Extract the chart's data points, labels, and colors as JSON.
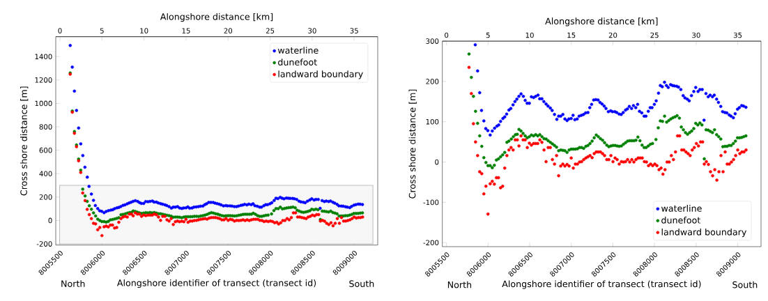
{
  "chart_data": [
    {
      "type": "scatter",
      "marker": "circle",
      "legend": "top right",
      "xlabel": "Alongshore identifier of transect (transect id)",
      "ylabel": "Cross shore distance [m]",
      "x2label": "Alongshore distance [km]",
      "annotations": [
        "North",
        "South"
      ],
      "xlim": [
        8005450,
        8009280
      ],
      "xticks": [
        8005500,
        8006000,
        8006500,
        8007000,
        8007500,
        8008000,
        8008500,
        8009000
      ],
      "ylim": [
        -210,
        1570
      ],
      "yticks": [
        -200,
        0,
        200,
        400,
        600,
        800,
        1000,
        1200,
        1400
      ],
      "x2lim": [
        -0.5,
        37.8
      ],
      "x2ticks": [
        0,
        5,
        10,
        15,
        20,
        25,
        30,
        35
      ],
      "bands": [
        {
          "axis": "y",
          "from": -200,
          "to": 300,
          "color": "#bfbfbf"
        }
      ],
      "series": [
        {
          "name": "waterline",
          "color": "#0000ff",
          "x": [
            8005622,
            8005647,
            8005672,
            8005697,
            8005722,
            8005747,
            8005772,
            8005797,
            8005825,
            8005846,
            8005874,
            8005899,
            8005921,
            8005949,
            8005972,
            8005997,
            8006025,
            8006050,
            8006078,
            8006106,
            8006128,
            8006150,
            8006178,
            8006200,
            8006223,
            8006250,
            8006273,
            8006300,
            8006323,
            8006346,
            8006370,
            8006396,
            8006424,
            8006446,
            8006469,
            8006496,
            8006520,
            8006547,
            8006572,
            8006600,
            8006620,
            8006647,
            8006670,
            8006697,
            8006720,
            8006748,
            8006770,
            8006798,
            8006826,
            8006848,
            8006873,
            8006899,
            8006923,
            8006949,
            8006971,
            8006999,
            8007021,
            8007043,
            8007071,
            8007094,
            8007121,
            8007147,
            8007172,
            8007200,
            8007222,
            8007244,
            8007269,
            8007295,
            8007322,
            8007345,
            8007370,
            8007395,
            8007417,
            8007445,
            8007473,
            8007495,
            8007523,
            8007546,
            8007574,
            8007600,
            8007624,
            8007652,
            8007674,
            8007697,
            8007724,
            8007747,
            8007775,
            8007797,
            8007819,
            8007847,
            8007875,
            8007897,
            8007925,
            8007948,
            8007970,
            8007998,
            8008020,
            8008048,
            8008070,
            8008093,
            8008120,
            8008143,
            8008165,
            8008193,
            8008216,
            8008238,
            8008266,
            8008288,
            8008316,
            8008344,
            8008366,
            8008394,
            8008417,
            8008444,
            8008472,
            8008495,
            8008523,
            8008545,
            8008573,
            8008595,
            8008618,
            8008645,
            8008668,
            8008696,
            8008718,
            8008746,
            8008768,
            8008796,
            8008818,
            8008846,
            8008869,
            8008897,
            8008919,
            8008947,
            8008969,
            8008997,
            8009019,
            8009047,
            8009070,
            8009098
          ],
          "values": [
            1495,
            1310,
            1105,
            940,
            790,
            655,
            555,
            455,
            370,
            291,
            226,
            172,
            128,
            102,
            83,
            78,
            67,
            77,
            84,
            89,
            92,
            101,
            108,
            112,
            119,
            129,
            133,
            142,
            150,
            156,
            163,
            169,
            163,
            153,
            146,
            146,
            162,
            160,
            163,
            166,
            157,
            157,
            150,
            144,
            139,
            134,
            128,
            118,
            106,
            114,
            114,
            118,
            107,
            103,
            107,
            108,
            116,
            105,
            107,
            114,
            116,
            118,
            122,
            123,
            135,
            143,
            154,
            155,
            154,
            148,
            144,
            139,
            133,
            125,
            127,
            125,
            125,
            123,
            119,
            118,
            123,
            129,
            132,
            138,
            133,
            140,
            135,
            143,
            126,
            122,
            114,
            114,
            126,
            135,
            135,
            143,
            152,
            171,
            190,
            187,
            198,
            190,
            185,
            192,
            190,
            189,
            188,
            186,
            180,
            165,
            159,
            156,
            152,
            165,
            175,
            185,
            175,
            180,
            180,
            104,
            170,
            162,
            166,
            162,
            166,
            156,
            148,
            138,
            125,
            123,
            122,
            117,
            114,
            110,
            120,
            131,
            135,
            140,
            139,
            136
          ]
        },
        {
          "name": "dunefoot",
          "color": "#008000",
          "x": [
            8005622,
            8005647,
            8005672,
            8005697,
            8005722,
            8005747,
            8005771,
            8005799,
            8005824,
            8005849,
            8005874,
            8005899,
            8005924,
            8005949,
            8005974,
            8005999,
            8006025,
            8006050,
            8006075,
            8006100,
            8006125,
            8006150,
            8006175,
            8006200,
            8006226,
            8006250,
            8006279,
            8006304,
            8006329,
            8006351,
            8006371,
            8006396,
            8006421,
            8006446,
            8006471,
            8006496,
            8006521,
            8006547,
            8006572,
            8006597,
            8006622,
            8006647,
            8006672,
            8006697,
            8006722,
            8006748,
            8006773,
            8006798,
            8006823,
            8006848,
            8006873,
            8006898,
            8006923,
            8006949,
            8006974,
            8006999,
            8007024,
            8007049,
            8007074,
            8007099,
            8007124,
            8007149,
            8007175,
            8007200,
            8007225,
            8007250,
            8007275,
            8007300,
            8007325,
            8007350,
            8007376,
            8007400,
            8007426,
            8007451,
            8007476,
            8007501,
            8007526,
            8007551,
            8007576,
            8007602,
            8007627,
            8007652,
            8007677,
            8007702,
            8007727,
            8007752,
            8007777,
            8007800,
            8007825,
            8007850,
            8007875,
            8007900,
            8007925,
            8007950,
            8007976,
            8008017,
            8008045,
            8008070,
            8008096,
            8008121,
            8008146,
            8008171,
            8008196,
            8008221,
            8008246,
            8008271,
            8008299,
            8008322,
            8008347,
            8008372,
            8008397,
            8008422,
            8008447,
            8008472,
            8008495,
            8008520,
            8008545,
            8008570,
            8008598,
            8008620,
            8008645,
            8008670,
            8008696,
            8008721,
            8008746,
            8008771,
            8008796,
            8008821,
            8008846,
            8008871,
            8008896,
            8008921,
            8008947,
            8008972,
            8008997,
            8009022,
            8009047,
            8009072,
            8009098
          ],
          "values": [
            1260,
            935,
            760,
            645,
            525,
            430,
            268,
            210,
            163,
            126,
            96,
            65,
            39,
            11,
            -1,
            -9,
            -9,
            -14,
            -8,
            5,
            8,
            13,
            18,
            24,
            49,
            52,
            57,
            63,
            68,
            69,
            81,
            77,
            71,
            65,
            60,
            63,
            67,
            65,
            68,
            65,
            68,
            63,
            58,
            57,
            53,
            49,
            45,
            41,
            37,
            28,
            30,
            29,
            28,
            24,
            30,
            32,
            32,
            32,
            33,
            36,
            36,
            34,
            39,
            41,
            46,
            52,
            60,
            67,
            63,
            58,
            54,
            48,
            42,
            38,
            40,
            41,
            41,
            40,
            39,
            40,
            44,
            48,
            52,
            53,
            53,
            53,
            54,
            62,
            53,
            42,
            36,
            36,
            40,
            44,
            46,
            56,
            85,
            102,
            101,
            114,
            99,
            103,
            107,
            110,
            112,
            115,
            109,
            87,
            80,
            73,
            69,
            73,
            77,
            83,
            96,
            92,
            97,
            92,
            8,
            80,
            79,
            76,
            73,
            80,
            68,
            63,
            57,
            38,
            39,
            39,
            41,
            41,
            46,
            52,
            60,
            60,
            61,
            63,
            65
          ]
        },
        {
          "name": "landward boundary",
          "color": "#ff0000",
          "x": [
            8005622,
            8005647,
            8005672,
            8005697,
            8005722,
            8005747,
            8005771,
            8005799,
            8005824,
            8005849,
            8005874,
            8005899,
            8005924,
            8005949,
            8005974,
            8005999,
            8006025,
            8006050,
            8006075,
            8006100,
            8006125,
            8006150,
            8006175,
            8006200,
            8006226,
            8006250,
            8006276,
            8006301,
            8006326,
            8006351,
            8006371,
            8006396,
            8006421,
            8006446,
            8006471,
            8006496,
            8006521,
            8006547,
            8006572,
            8006597,
            8006622,
            8006647,
            8006672,
            8006697,
            8006722,
            8006748,
            8006773,
            8006798,
            8006823,
            8006848,
            8006873,
            8006898,
            8006923,
            8006949,
            8006974,
            8006999,
            8007024,
            8007049,
            8007074,
            8007099,
            8007124,
            8007149,
            8007175,
            8007200,
            8007225,
            8007250,
            8007275,
            8007300,
            8007325,
            8007350,
            8007376,
            8007400,
            8007426,
            8007451,
            8007476,
            8007501,
            8007526,
            8007551,
            8007576,
            8007602,
            8007627,
            8007652,
            8007677,
            8007702,
            8007727,
            8007752,
            8007777,
            8007803,
            8007828,
            8007853,
            8007878,
            8007903,
            8007928,
            8007953,
            8007978,
            8008004,
            8008029,
            8008054,
            8008079,
            8008101,
            8008126,
            8008151,
            8008176,
            8008202,
            8008227,
            8008252,
            8008277,
            8008302,
            8008327,
            8008352,
            8008377,
            8008403,
            8008428,
            8008453,
            8008478,
            8008503,
            8008528,
            8008553,
            8008578,
            8008598,
            8008623,
            8008648,
            8008673,
            8008698,
            8008724,
            8008749,
            8008774,
            8008799,
            8008824,
            8008849,
            8008874,
            8008899,
            8008924,
            8008950,
            8008975,
            8009000,
            8009025,
            8009050,
            8009075,
            8009100
          ],
          "values": [
            1250,
            925,
            745,
            630,
            510,
            410,
            235,
            170,
            95,
            50,
            16,
            -24,
            -29,
            -79,
            -60,
            -129,
            -54,
            -48,
            -55,
            -39,
            -39,
            -64,
            -60,
            -15,
            16,
            30,
            36,
            30,
            55,
            55,
            40,
            65,
            55,
            55,
            36,
            47,
            42,
            46,
            46,
            46,
            55,
            49,
            30,
            1,
            36,
            36,
            6,
            -5,
            16,
            -34,
            -10,
            -5,
            -10,
            -6,
            -10,
            10,
            -15,
            -5,
            -5,
            0,
            1,
            6,
            10,
            13,
            16,
            11,
            21,
            25,
            25,
            25,
            21,
            16,
            6,
            6,
            16,
            1,
            10,
            6,
            -5,
            1,
            0,
            1,
            6,
            0,
            6,
            0,
            6,
            10,
            10,
            10,
            1,
            0,
            -9,
            -5,
            -9,
            -5,
            -9,
            -19,
            -15,
            -30,
            -19,
            0,
            0,
            16,
            6,
            25,
            65,
            65,
            30,
            30,
            25,
            21,
            16,
            30,
            36,
            46,
            40,
            50,
            50,
            -5,
            1,
            -6,
            -24,
            -34,
            -19,
            -45,
            -24,
            16,
            -24,
            25,
            -5,
            -5,
            0,
            6,
            16,
            30,
            21,
            25,
            25,
            30
          ]
        }
      ]
    },
    {
      "type": "scatter",
      "marker": "circle",
      "legend": "bottom right",
      "xlabel": "Alongshore identifier of transect (transect id)",
      "ylabel": "Cross shore distance [m]",
      "x2label": "Alongshore distance [km]",
      "annotations": [
        "North",
        "South"
      ],
      "xlim": [
        8005450,
        8009280
      ],
      "xticks": [
        8005500,
        8006000,
        8006500,
        8007000,
        8007500,
        8008000,
        8008500,
        8009000
      ],
      "ylim": [
        -210,
        300
      ],
      "yticks": [
        -200,
        -100,
        0,
        100,
        200,
        300
      ],
      "x2lim": [
        -0.5,
        37.8
      ],
      "x2ticks": [
        0,
        5,
        10,
        15,
        20,
        25,
        30,
        35
      ],
      "series": [
        {
          "name": "waterline",
          "color": "#0000ff",
          "x": [
            8005846,
            8005874,
            8005899,
            8005921,
            8005949,
            8005972,
            8005997,
            8006025,
            8006050,
            8006078,
            8006106,
            8006128,
            8006150,
            8006178,
            8006200,
            8006223,
            8006250,
            8006273,
            8006300,
            8006323,
            8006346,
            8006370,
            8006396,
            8006424,
            8006446,
            8006469,
            8006496,
            8006520,
            8006547,
            8006572,
            8006600,
            8006620,
            8006647,
            8006670,
            8006697,
            8006720,
            8006748,
            8006770,
            8006798,
            8006826,
            8006848,
            8006873,
            8006899,
            8006923,
            8006949,
            8006971,
            8006999,
            8007021,
            8007043,
            8007071,
            8007094,
            8007121,
            8007147,
            8007172,
            8007200,
            8007222,
            8007244,
            8007269,
            8007295,
            8007322,
            8007345,
            8007370,
            8007395,
            8007417,
            8007445,
            8007473,
            8007495,
            8007523,
            8007546,
            8007574,
            8007600,
            8007624,
            8007652,
            8007674,
            8007697,
            8007724,
            8007747,
            8007775,
            8007797,
            8007819,
            8007847,
            8007875,
            8007897,
            8007925,
            8007948,
            8007970,
            8007998,
            8008020,
            8008048,
            8008070,
            8008093,
            8008120,
            8008143,
            8008165,
            8008193,
            8008216,
            8008238,
            8008266,
            8008288,
            8008316,
            8008344,
            8008366,
            8008394,
            8008417,
            8008444,
            8008472,
            8008495,
            8008523,
            8008545,
            8008573,
            8008595,
            8008618,
            8008645,
            8008668,
            8008696,
            8008718,
            8008746,
            8008768,
            8008796,
            8008818,
            8008846,
            8008869,
            8008897,
            8008919,
            8008947,
            8008969,
            8008997,
            8009019,
            8009047,
            8009070,
            8009098
          ],
          "values": [
            291,
            226,
            172,
            128,
            102,
            83,
            78,
            67,
            77,
            84,
            89,
            92,
            101,
            108,
            112,
            119,
            129,
            133,
            142,
            150,
            156,
            163,
            169,
            163,
            153,
            146,
            146,
            162,
            160,
            163,
            166,
            157,
            157,
            150,
            144,
            139,
            134,
            128,
            118,
            106,
            114,
            114,
            118,
            107,
            103,
            107,
            108,
            116,
            105,
            107,
            114,
            116,
            118,
            122,
            123,
            135,
            143,
            154,
            155,
            154,
            148,
            144,
            139,
            133,
            125,
            127,
            125,
            125,
            123,
            119,
            118,
            123,
            129,
            132,
            138,
            133,
            140,
            135,
            143,
            126,
            122,
            114,
            114,
            126,
            135,
            135,
            143,
            152,
            171,
            190,
            187,
            198,
            190,
            185,
            192,
            190,
            189,
            188,
            186,
            180,
            165,
            159,
            156,
            152,
            165,
            175,
            185,
            175,
            180,
            180,
            104,
            170,
            162,
            166,
            162,
            166,
            156,
            148,
            138,
            125,
            123,
            122,
            117,
            114,
            110,
            120,
            131,
            135,
            140,
            139,
            136
          ]
        },
        {
          "name": "dunefoot",
          "color": "#008000",
          "x": [
            8005771,
            8005799,
            8005824,
            8005849,
            8005874,
            8005899,
            8005924,
            8005949,
            8005974,
            8005999,
            8006025,
            8006050,
            8006075,
            8006100,
            8006125,
            8006150,
            8006175,
            8006200,
            8006226,
            8006250,
            8006279,
            8006304,
            8006329,
            8006351,
            8006371,
            8006396,
            8006421,
            8006446,
            8006471,
            8006496,
            8006521,
            8006547,
            8006572,
            8006597,
            8006622,
            8006647,
            8006672,
            8006697,
            8006722,
            8006748,
            8006773,
            8006798,
            8006823,
            8006848,
            8006873,
            8006898,
            8006923,
            8006949,
            8006974,
            8006999,
            8007024,
            8007049,
            8007074,
            8007099,
            8007124,
            8007149,
            8007175,
            8007200,
            8007225,
            8007250,
            8007275,
            8007300,
            8007325,
            8007350,
            8007376,
            8007400,
            8007426,
            8007451,
            8007476,
            8007501,
            8007526,
            8007551,
            8007576,
            8007602,
            8007627,
            8007652,
            8007677,
            8007702,
            8007727,
            8007752,
            8007777,
            8007800,
            8007825,
            8007850,
            8007875,
            8007900,
            8007925,
            8007950,
            8007976,
            8008017,
            8008045,
            8008070,
            8008096,
            8008121,
            8008146,
            8008171,
            8008196,
            8008221,
            8008246,
            8008271,
            8008299,
            8008322,
            8008347,
            8008372,
            8008397,
            8008422,
            8008447,
            8008472,
            8008495,
            8008520,
            8008545,
            8008570,
            8008598,
            8008620,
            8008645,
            8008670,
            8008696,
            8008721,
            8008746,
            8008771,
            8008796,
            8008821,
            8008846,
            8008871,
            8008896,
            8008921,
            8008947,
            8008972,
            8008997,
            8009022,
            8009047,
            8009072,
            8009098
          ],
          "values": [
            268,
            210,
            163,
            126,
            96,
            65,
            39,
            11,
            -1,
            -9,
            -9,
            -14,
            -8,
            5,
            8,
            13,
            18,
            24,
            49,
            52,
            57,
            63,
            68,
            69,
            81,
            77,
            71,
            65,
            60,
            63,
            67,
            65,
            68,
            65,
            68,
            63,
            58,
            57,
            53,
            49,
            45,
            41,
            37,
            28,
            30,
            29,
            28,
            24,
            30,
            32,
            32,
            32,
            33,
            36,
            36,
            34,
            39,
            41,
            46,
            52,
            60,
            67,
            63,
            58,
            54,
            48,
            42,
            38,
            40,
            41,
            41,
            40,
            39,
            40,
            44,
            48,
            52,
            53,
            53,
            53,
            54,
            62,
            53,
            42,
            36,
            36,
            40,
            44,
            46,
            56,
            85,
            102,
            101,
            114,
            99,
            103,
            107,
            110,
            112,
            115,
            109,
            87,
            80,
            73,
            69,
            73,
            77,
            83,
            96,
            92,
            97,
            92,
            8,
            80,
            79,
            76,
            73,
            80,
            68,
            63,
            57,
            38,
            39,
            39,
            41,
            41,
            46,
            52,
            60,
            60,
            61,
            63,
            65
          ]
        },
        {
          "name": "landward boundary",
          "color": "#ff0000",
          "x": [
            8005771,
            8005799,
            8005824,
            8005849,
            8005874,
            8005899,
            8005924,
            8005949,
            8005974,
            8005999,
            8006025,
            8006050,
            8006075,
            8006100,
            8006125,
            8006150,
            8006175,
            8006200,
            8006226,
            8006250,
            8006276,
            8006301,
            8006326,
            8006351,
            8006371,
            8006396,
            8006421,
            8006446,
            8006471,
            8006496,
            8006521,
            8006547,
            8006572,
            8006597,
            8006622,
            8006647,
            8006672,
            8006697,
            8006722,
            8006748,
            8006773,
            8006798,
            8006823,
            8006848,
            8006873,
            8006898,
            8006923,
            8006949,
            8006974,
            8006999,
            8007024,
            8007049,
            8007074,
            8007099,
            8007124,
            8007149,
            8007175,
            8007200,
            8007225,
            8007250,
            8007275,
            8007300,
            8007325,
            8007350,
            8007376,
            8007400,
            8007426,
            8007451,
            8007476,
            8007501,
            8007526,
            8007551,
            8007576,
            8007602,
            8007627,
            8007652,
            8007677,
            8007702,
            8007727,
            8007752,
            8007777,
            8007803,
            8007828,
            8007853,
            8007878,
            8007903,
            8007928,
            8007953,
            8007978,
            8008004,
            8008029,
            8008054,
            8008079,
            8008101,
            8008126,
            8008151,
            8008176,
            8008202,
            8008227,
            8008252,
            8008277,
            8008302,
            8008327,
            8008352,
            8008377,
            8008403,
            8008428,
            8008453,
            8008478,
            8008503,
            8008528,
            8008553,
            8008578,
            8008598,
            8008623,
            8008648,
            8008673,
            8008698,
            8008724,
            8008749,
            8008774,
            8008799,
            8008824,
            8008849,
            8008874,
            8008899,
            8008924,
            8008950,
            8008975,
            8009000,
            8009025,
            8009050,
            8009075,
            8009100
          ],
          "values": [
            235,
            170,
            95,
            50,
            16,
            -24,
            -29,
            -79,
            -60,
            -129,
            -54,
            -48,
            -55,
            -39,
            -39,
            -64,
            -60,
            -15,
            16,
            30,
            36,
            30,
            55,
            55,
            40,
            65,
            55,
            55,
            36,
            47,
            42,
            46,
            46,
            46,
            55,
            49,
            30,
            1,
            36,
            36,
            6,
            -5,
            16,
            -34,
            -10,
            -5,
            -10,
            -6,
            -10,
            10,
            -15,
            -5,
            -5,
            0,
            1,
            6,
            10,
            13,
            16,
            11,
            21,
            25,
            25,
            25,
            21,
            16,
            6,
            6,
            16,
            1,
            10,
            6,
            -5,
            1,
            0,
            1,
            6,
            0,
            6,
            0,
            6,
            10,
            10,
            10,
            1,
            0,
            -9,
            -5,
            -9,
            -5,
            -9,
            -19,
            -15,
            -30,
            -19,
            0,
            0,
            16,
            6,
            25,
            65,
            65,
            30,
            30,
            25,
            21,
            16,
            30,
            36,
            46,
            40,
            50,
            50,
            -5,
            1,
            -6,
            -24,
            -34,
            -19,
            -45,
            -24,
            16,
            -24,
            25,
            -5,
            -5,
            0,
            6,
            16,
            30,
            21,
            25,
            25,
            30
          ]
        }
      ]
    }
  ]
}
